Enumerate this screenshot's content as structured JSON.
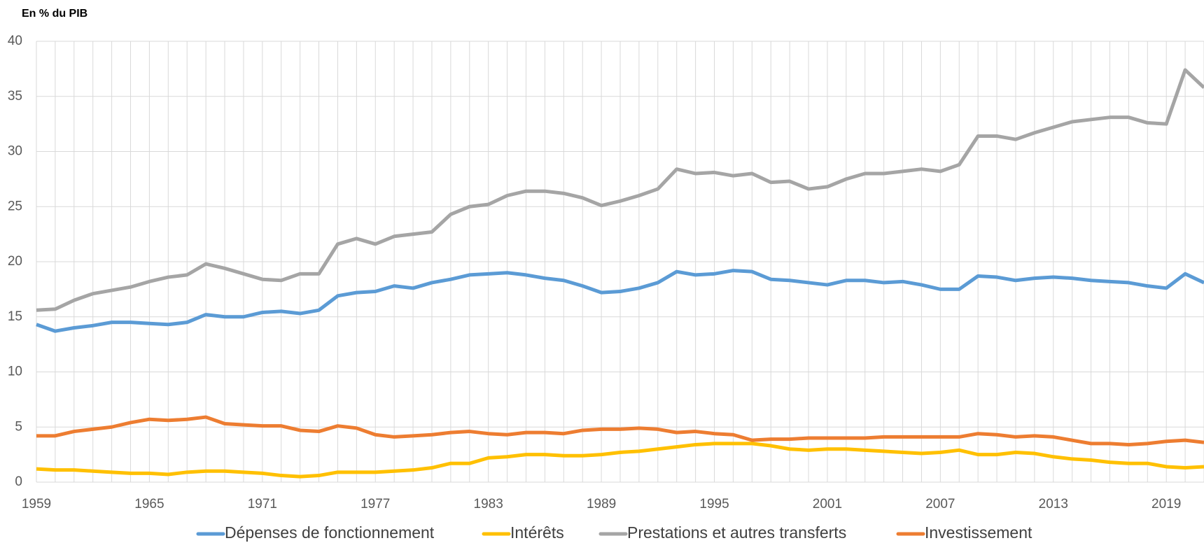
{
  "chart_data": {
    "type": "line",
    "title": "En % du PIB",
    "categories": [
      "1959",
      null,
      null,
      null,
      null,
      null,
      "1965",
      null,
      null,
      null,
      null,
      null,
      "1971",
      null,
      null,
      null,
      null,
      null,
      "1977",
      null,
      null,
      null,
      null,
      null,
      "1983",
      null,
      null,
      null,
      null,
      null,
      "1989",
      null,
      null,
      null,
      null,
      null,
      "1995",
      null,
      null,
      null,
      null,
      null,
      "2001",
      null,
      null,
      null,
      null,
      null,
      "2007",
      null,
      null,
      null,
      null,
      null,
      "2013",
      null,
      null,
      null,
      null,
      null,
      "2019",
      null,
      null
    ],
    "series": [
      {
        "name": "Dépenses de fonctionnement",
        "color": "#5b9bd5",
        "values": [
          14.3,
          13.7,
          14.0,
          14.2,
          14.5,
          14.5,
          14.4,
          14.3,
          14.5,
          15.2,
          15.0,
          15.0,
          15.4,
          15.5,
          15.3,
          15.6,
          16.9,
          17.2,
          17.3,
          17.8,
          17.6,
          18.1,
          18.4,
          18.8,
          18.9,
          19.0,
          18.8,
          18.5,
          18.3,
          17.8,
          17.2,
          17.3,
          17.6,
          18.1,
          19.1,
          18.8,
          18.9,
          19.2,
          19.1,
          18.4,
          18.3,
          18.1,
          17.9,
          18.3,
          18.3,
          18.1,
          18.2,
          17.9,
          17.5,
          17.5,
          18.7,
          18.6,
          18.3,
          18.5,
          18.6,
          18.5,
          18.3,
          18.2,
          18.1,
          17.8,
          17.6,
          18.9,
          18.1
        ]
      },
      {
        "name": "Intérêts",
        "color": "#ffc000",
        "values": [
          1.2,
          1.1,
          1.1,
          1.0,
          0.9,
          0.8,
          0.8,
          0.7,
          0.9,
          1.0,
          1.0,
          0.9,
          0.8,
          0.6,
          0.5,
          0.6,
          0.9,
          0.9,
          0.9,
          1.0,
          1.1,
          1.3,
          1.7,
          1.7,
          2.2,
          2.3,
          2.5,
          2.5,
          2.4,
          2.4,
          2.5,
          2.7,
          2.8,
          3.0,
          3.2,
          3.4,
          3.5,
          3.5,
          3.5,
          3.3,
          3.0,
          2.9,
          3.0,
          3.0,
          2.9,
          2.8,
          2.7,
          2.6,
          2.7,
          2.9,
          2.5,
          2.5,
          2.7,
          2.6,
          2.3,
          2.1,
          2.0,
          1.8,
          1.7,
          1.7,
          1.4,
          1.3,
          1.4
        ]
      },
      {
        "name": "Prestations et autres transferts",
        "color": "#a5a5a5",
        "values": [
          15.6,
          15.7,
          16.5,
          17.1,
          17.4,
          17.7,
          18.2,
          18.6,
          18.8,
          19.8,
          19.4,
          18.9,
          18.4,
          18.3,
          18.9,
          18.9,
          21.6,
          22.1,
          21.6,
          22.3,
          22.5,
          22.7,
          24.3,
          25.0,
          25.2,
          26.0,
          26.4,
          26.4,
          26.2,
          25.8,
          25.1,
          25.5,
          26.0,
          26.6,
          28.4,
          28.0,
          28.1,
          27.8,
          28.0,
          27.2,
          27.3,
          26.6,
          26.8,
          27.5,
          28.0,
          28.0,
          28.2,
          28.4,
          28.2,
          28.8,
          31.4,
          31.4,
          31.1,
          31.7,
          32.2,
          32.7,
          32.9,
          33.1,
          33.1,
          32.6,
          32.5,
          37.4,
          35.8
        ]
      },
      {
        "name": "Investissement",
        "color": "#ed7d31",
        "values": [
          4.2,
          4.2,
          4.6,
          4.8,
          5.0,
          5.4,
          5.7,
          5.6,
          5.7,
          5.9,
          5.3,
          5.2,
          5.1,
          5.1,
          4.7,
          4.6,
          5.1,
          4.9,
          4.3,
          4.1,
          4.2,
          4.3,
          4.5,
          4.6,
          4.4,
          4.3,
          4.5,
          4.5,
          4.4,
          4.7,
          4.8,
          4.8,
          4.9,
          4.8,
          4.5,
          4.6,
          4.4,
          4.3,
          3.8,
          3.9,
          3.9,
          4.0,
          4.0,
          4.0,
          4.0,
          4.1,
          4.1,
          4.1,
          4.1,
          4.1,
          4.4,
          4.3,
          4.1,
          4.2,
          4.1,
          3.8,
          3.5,
          3.5,
          3.4,
          3.5,
          3.7,
          3.8,
          3.6
        ]
      }
    ],
    "ylim": [
      0,
      40
    ],
    "yticks": [
      0,
      5,
      10,
      15,
      20,
      25,
      30,
      35,
      40
    ],
    "grid": true,
    "legend": "bottom"
  }
}
